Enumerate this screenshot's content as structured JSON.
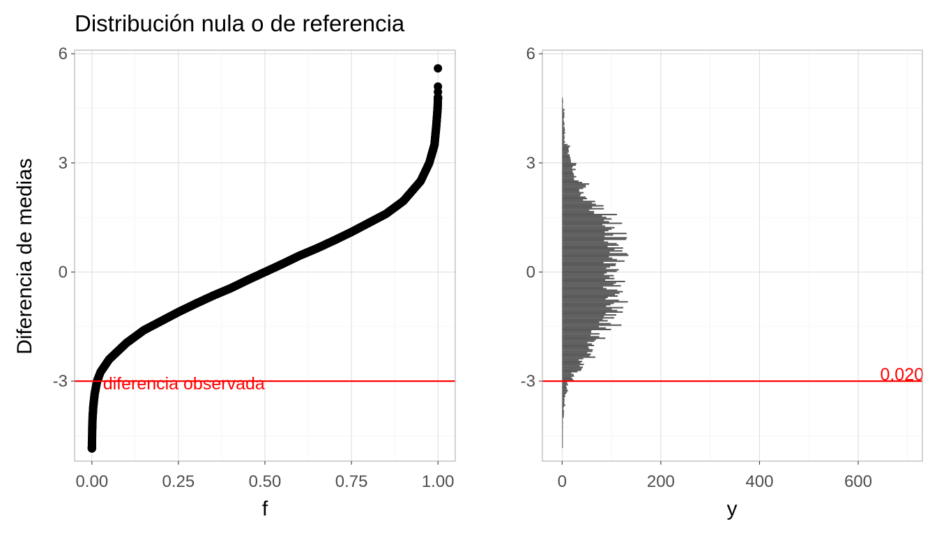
{
  "colors": {
    "points": "#000000",
    "bars": "#595959",
    "reference_line": "#ff0000",
    "annotation": "#ff0000"
  },
  "chart_data": [
    {
      "type": "scatter",
      "title": "Distribución nula o de referencia",
      "xlabel": "f",
      "ylabel": "Diferencia de medias",
      "xlim": [
        -0.05,
        1.05
      ],
      "ylim": [
        -5.2,
        6.1
      ],
      "x_ticks": [
        "0.00",
        "0.25",
        "0.50",
        "0.75",
        "1.00"
      ],
      "x_tick_values": [
        0,
        0.25,
        0.5,
        0.75,
        1.0
      ],
      "y_ticks": [
        "-3",
        "0",
        "3",
        "6"
      ],
      "y_tick_values": [
        -3,
        0,
        3,
        6
      ],
      "grid": true,
      "quantile_curve": [
        [
          0.0,
          -4.85
        ],
        [
          0.0005,
          -4.6
        ],
        [
          0.001,
          -4.3
        ],
        [
          0.002,
          -4.0
        ],
        [
          0.004,
          -3.7
        ],
        [
          0.008,
          -3.35
        ],
        [
          0.015,
          -3.0
        ],
        [
          0.025,
          -2.75
        ],
        [
          0.05,
          -2.4
        ],
        [
          0.1,
          -1.95
        ],
        [
          0.15,
          -1.6
        ],
        [
          0.2,
          -1.35
        ],
        [
          0.25,
          -1.1
        ],
        [
          0.3,
          -0.87
        ],
        [
          0.35,
          -0.65
        ],
        [
          0.4,
          -0.45
        ],
        [
          0.45,
          -0.22
        ],
        [
          0.5,
          0.0
        ],
        [
          0.55,
          0.22
        ],
        [
          0.6,
          0.45
        ],
        [
          0.65,
          0.65
        ],
        [
          0.7,
          0.87
        ],
        [
          0.75,
          1.1
        ],
        [
          0.8,
          1.35
        ],
        [
          0.85,
          1.6
        ],
        [
          0.9,
          1.95
        ],
        [
          0.95,
          2.5
        ],
        [
          0.975,
          3.0
        ],
        [
          0.99,
          3.5
        ],
        [
          0.995,
          4.0
        ],
        [
          0.999,
          4.5
        ],
        [
          1.0,
          4.8
        ]
      ],
      "extreme_points": [
        [
          1.0,
          5.6
        ],
        [
          1.0,
          5.1
        ],
        [
          1.0,
          4.95
        ],
        [
          0.0,
          -4.7
        ]
      ],
      "reference_line": {
        "y": -3,
        "label": "diferencia observada"
      }
    },
    {
      "type": "bar",
      "orientation": "horizontal",
      "xlabel": "y",
      "ylabel": "",
      "xlim": [
        -40,
        730
      ],
      "ylim": [
        -5.2,
        6.1
      ],
      "x_ticks": [
        "0",
        "200",
        "400",
        "600"
      ],
      "x_tick_values": [
        0,
        200,
        400,
        600
      ],
      "y_ticks": [
        "-3",
        "0",
        "3",
        "6"
      ],
      "y_tick_values": [
        -3,
        0,
        3,
        6
      ],
      "grid": true,
      "reference_line": {
        "y": -3,
        "label": "0.020"
      }
    }
  ]
}
